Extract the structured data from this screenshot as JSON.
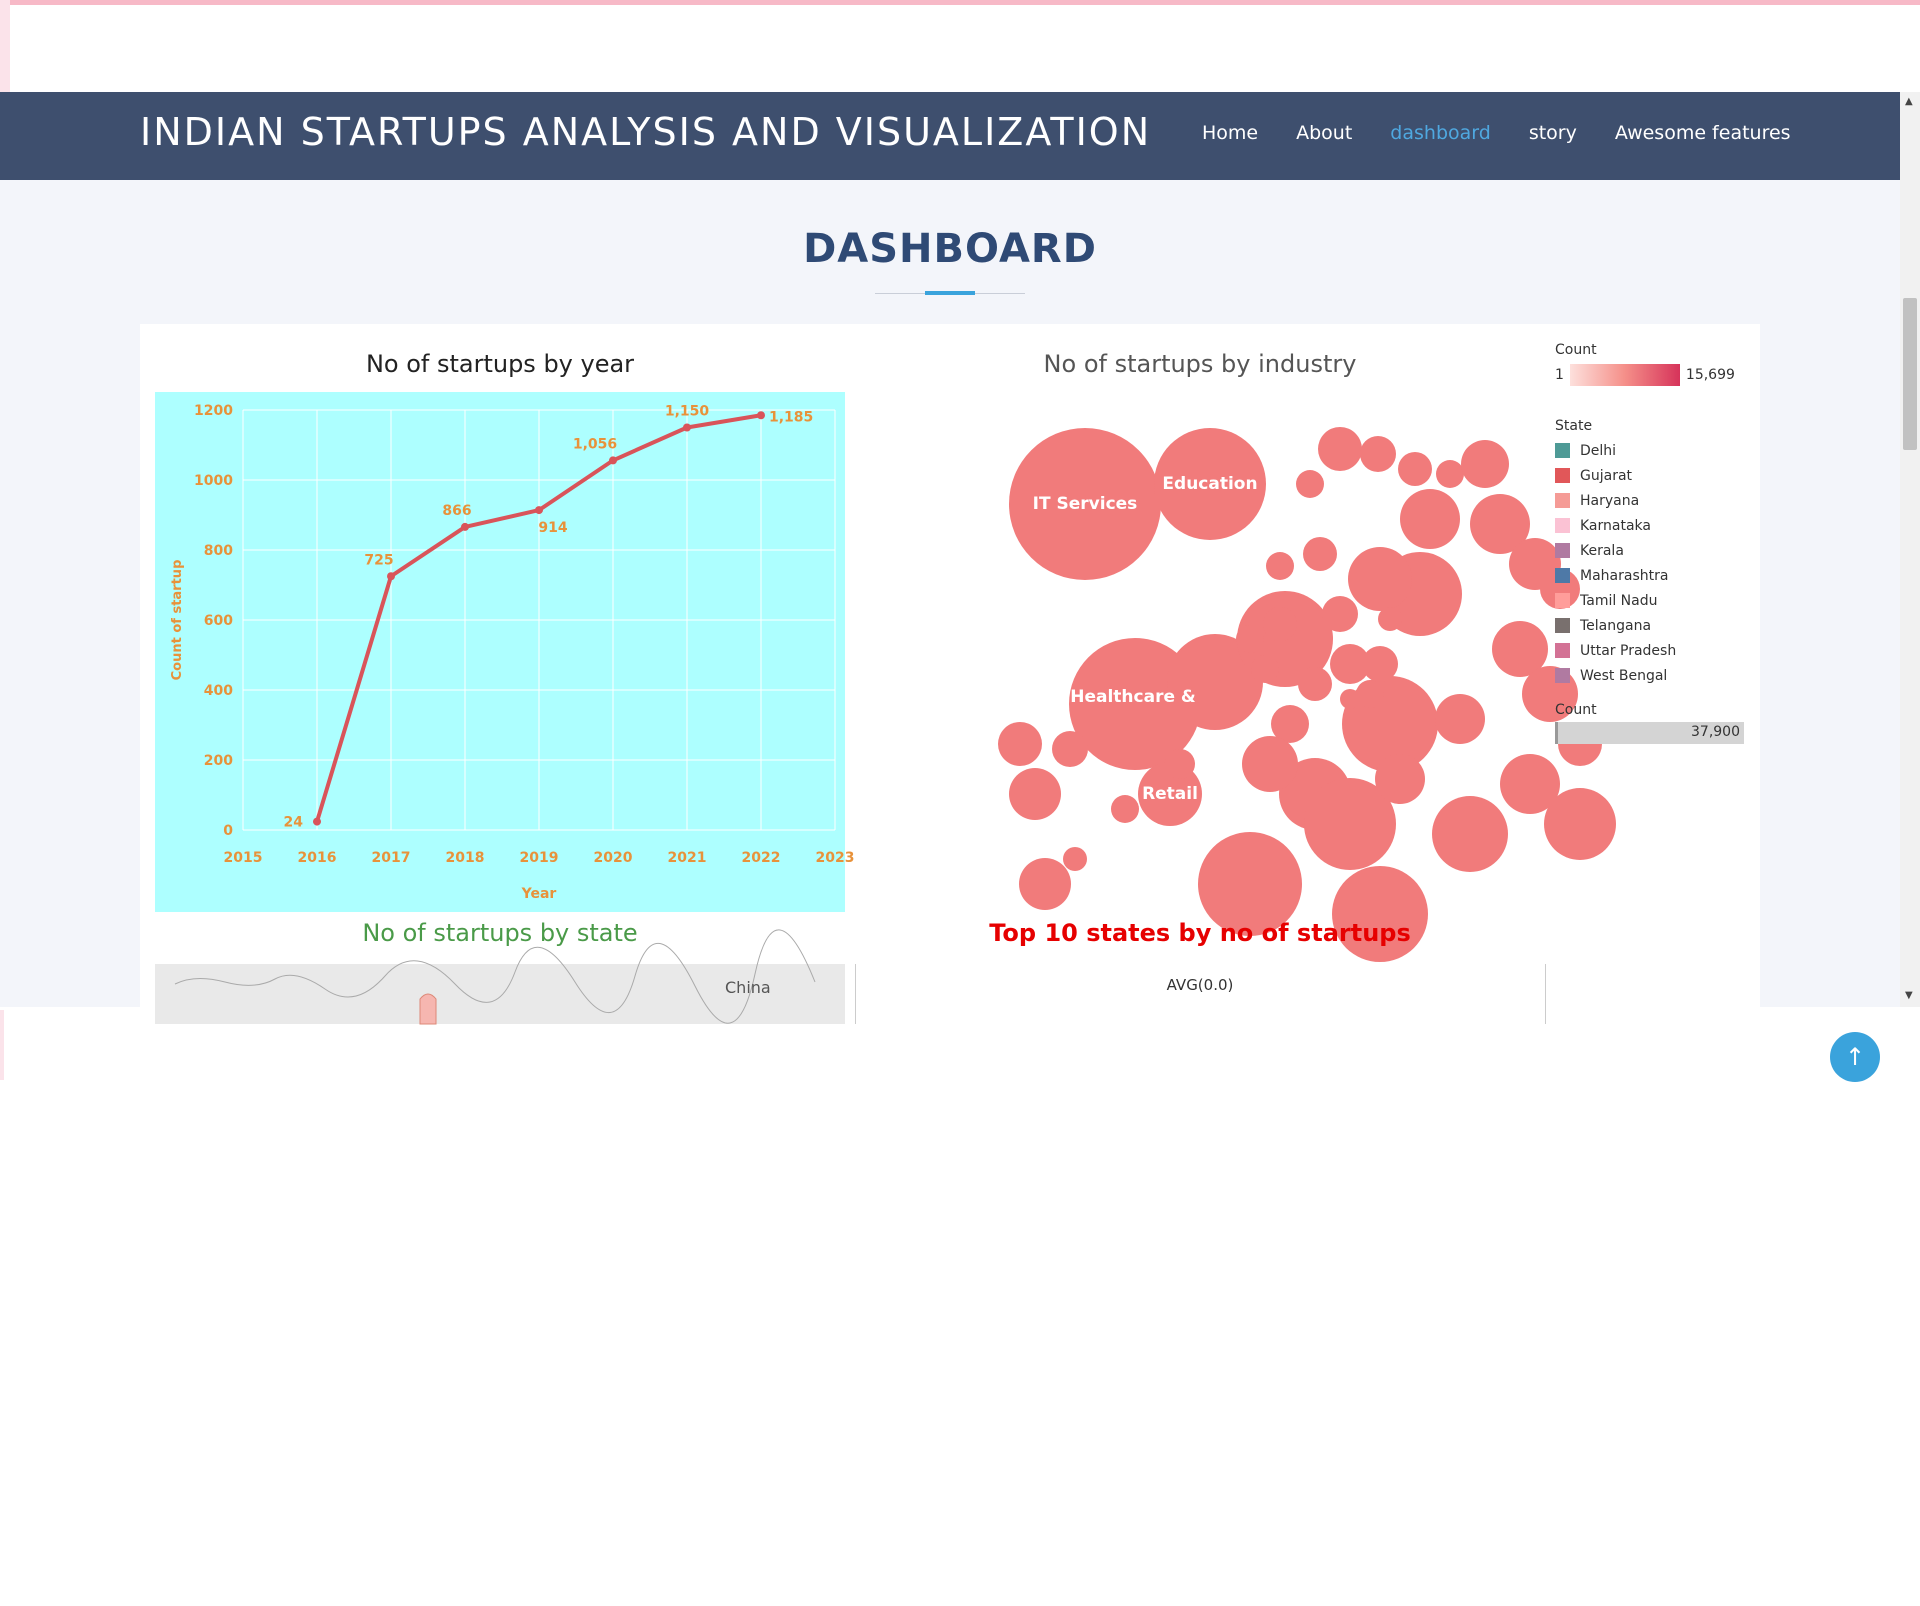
{
  "site": {
    "brand": "INDIAN STARTUPS ANALYSIS AND VISUALIZATION",
    "nav": [
      "Home",
      "About",
      "dashboard",
      "story",
      "Awesome features"
    ],
    "active_nav": "dashboard"
  },
  "page": {
    "heading": "DASHBOARD"
  },
  "charts": {
    "year_title": "No of startups by year",
    "industry_title": "No of startups by industry",
    "state_title": "No of startups by state",
    "top10_title": "Top 10 states by no of startups",
    "top10_axis": "AVG(0.0)",
    "map_label": "China"
  },
  "chart_data": [
    {
      "type": "line",
      "title": "No of startups by year",
      "xlabel": "Year",
      "ylabel": "Count of startup",
      "x": [
        2016,
        2017,
        2018,
        2019,
        2020,
        2021,
        2022
      ],
      "values": [
        24,
        725,
        866,
        914,
        1056,
        1150,
        1185
      ],
      "data_labels": [
        "24",
        "725",
        "866",
        "914",
        "1,056",
        "1,150",
        "1,185"
      ],
      "xlim": [
        2015,
        2023
      ],
      "ylim": [
        0,
        1200
      ],
      "x_ticks": [
        2015,
        2016,
        2017,
        2018,
        2019,
        2020,
        2021,
        2022,
        2023
      ],
      "y_ticks": [
        0,
        200,
        400,
        600,
        800,
        1000,
        1200
      ],
      "grid": true,
      "background": "#adffff",
      "line_color": "#d9545a",
      "label_color": "#e8923a"
    },
    {
      "type": "bubble",
      "title": "No of startups by industry",
      "labels": [
        "IT Services",
        "Education",
        "Healthcare &",
        "Retail"
      ],
      "color": "#f17b7b"
    }
  ],
  "legend": {
    "count_title": "Count",
    "count_min": "1",
    "count_max": "15,699",
    "state_title": "State",
    "states": [
      {
        "name": "Delhi",
        "color": "#4e9a96"
      },
      {
        "name": "Gujarat",
        "color": "#e15759"
      },
      {
        "name": "Haryana",
        "color": "#f59b96"
      },
      {
        "name": "Karnataka",
        "color": "#fbc2d4"
      },
      {
        "name": "Kerala",
        "color": "#b07aa1"
      },
      {
        "name": "Maharashtra",
        "color": "#4e79a7"
      },
      {
        "name": "Tamil Nadu",
        "color": "#ff9d9a"
      },
      {
        "name": "Telangana",
        "color": "#79706e"
      },
      {
        "name": "Uttar Pradesh",
        "color": "#d37295"
      },
      {
        "name": "West Bengal",
        "color": "#b07aa1"
      }
    ],
    "count2_title": "Count",
    "count2_value": "37,900"
  }
}
